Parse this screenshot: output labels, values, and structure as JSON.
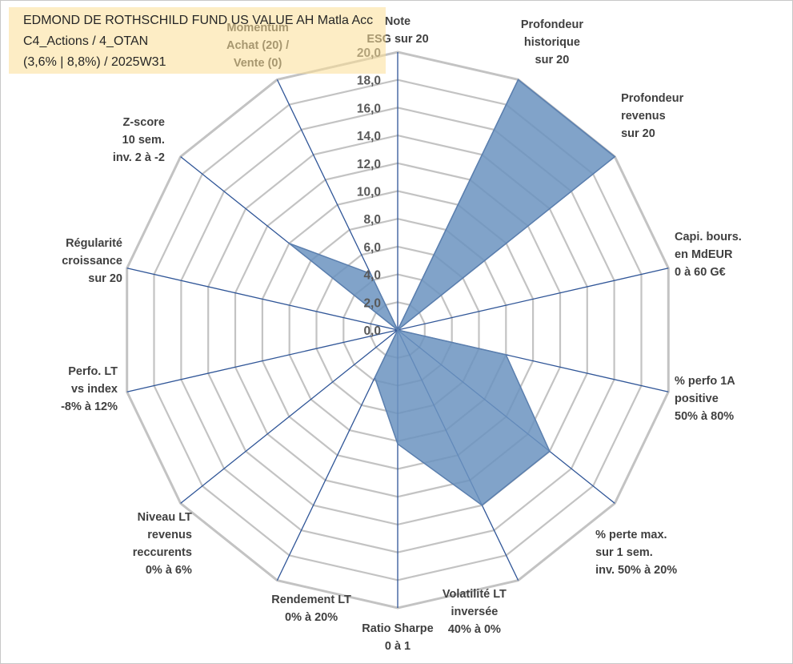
{
  "header": {
    "title_line1": "EDMOND DE ROTHSCHILD FUND US VALUE AH Matla Acc",
    "title_line2": "C4_Actions / 4_OTAN",
    "title_line3": "(3,6% | 8,8%) / 2025W31"
  },
  "colors": {
    "fill": "#6b93bf",
    "outline": "#5b7fae",
    "spoke": "#2f5597",
    "grid": "#c3c3c3"
  },
  "chart_data": {
    "type": "radar",
    "rmin": 0,
    "rmax": 20,
    "ticks": [
      "0,0",
      "2,0",
      "4,0",
      "6,0",
      "8,0",
      "10,0",
      "12,0",
      "14,0",
      "16,0",
      "18,0",
      "20,0"
    ],
    "axes": [
      {
        "label": [
          "Note",
          "ESG sur 20"
        ],
        "value": 0
      },
      {
        "label": [
          "Profondeur",
          "historique",
          "sur 20"
        ],
        "value": 20
      },
      {
        "label": [
          "Profondeur",
          "revenus",
          "sur 20"
        ],
        "value": 20
      },
      {
        "label": [
          "Capi. bours.",
          "en MdEUR",
          "0 à 60 G€"
        ],
        "value": 0
      },
      {
        "label": [
          "% perfo 1A",
          "positive",
          "50% à 80%"
        ],
        "value": 8
      },
      {
        "label": [
          "% perte max.",
          "sur 1 sem.",
          "inv. 50% à 20%"
        ],
        "value": 14
      },
      {
        "label": [
          "Volatilité LT",
          "inversée",
          "40% à 0%"
        ],
        "value": 14
      },
      {
        "label": [
          "Ratio Sharpe",
          "0 à 1"
        ],
        "value": 8.2
      },
      {
        "label": [
          "Rendement LT",
          "0% à 20%"
        ],
        "value": 3.8
      },
      {
        "label": [
          "Niveau LT",
          "revenus",
          "reccurents",
          "0% à 6%"
        ],
        "value": 0
      },
      {
        "label": [
          "Perfo. LT",
          "vs index",
          "-8% à 12%"
        ],
        "value": 0
      },
      {
        "label": [
          "Régularité",
          "croissance",
          "sur 20"
        ],
        "value": 0
      },
      {
        "label": [
          "Z-score",
          "10 sem.",
          "inv. 2 à -2"
        ],
        "value": 10
      },
      {
        "label": [
          "Momentum",
          "Achat (20) /",
          "Vente (0)"
        ],
        "value": 4.5
      }
    ]
  }
}
